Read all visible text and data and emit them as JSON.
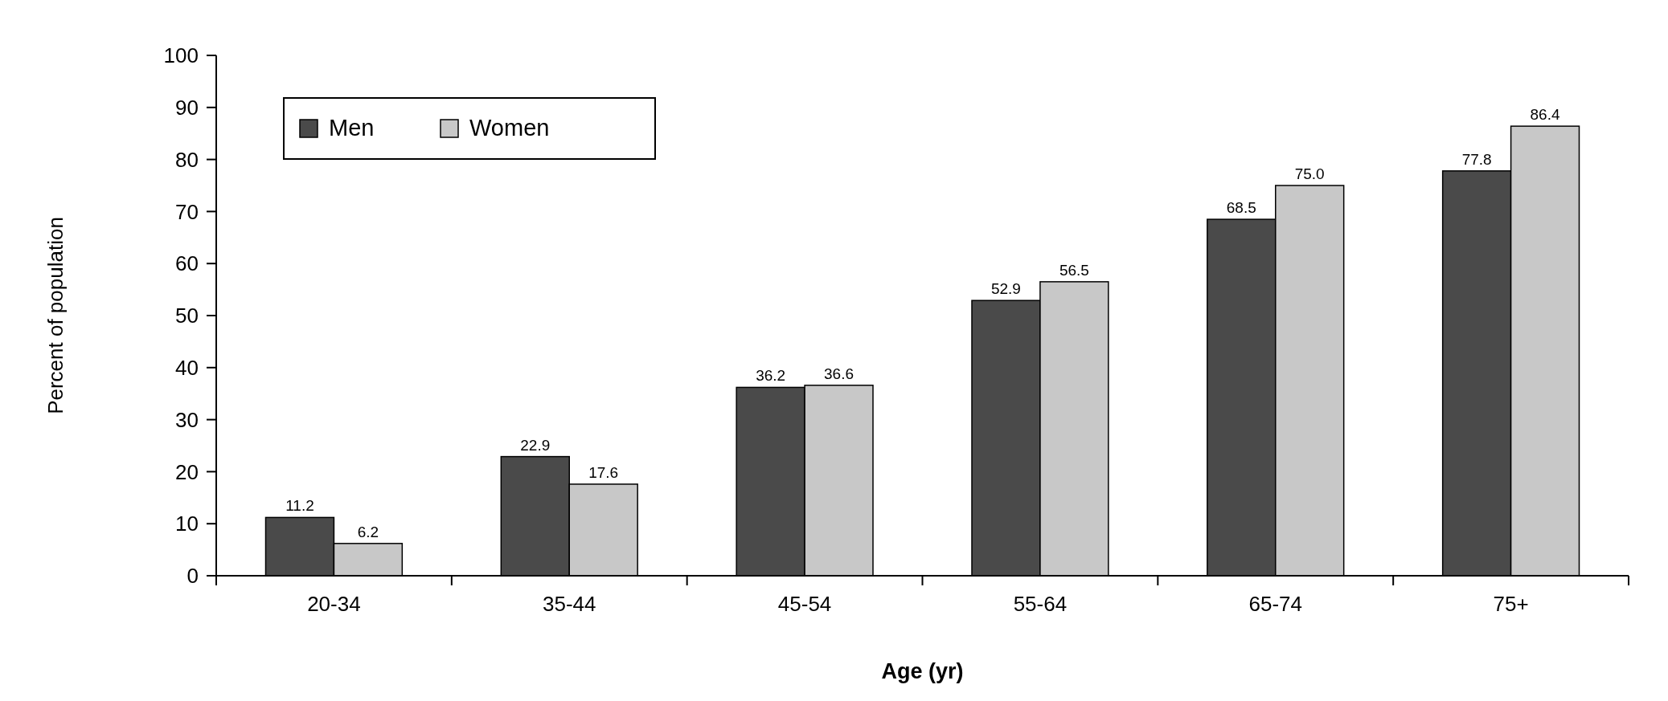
{
  "chart_data": {
    "type": "bar",
    "xlabel": "Age (yr)",
    "ylabel": "Percent of population",
    "categories": [
      "20-34",
      "35-44",
      "45-54",
      "55-64",
      "65-74",
      "75+"
    ],
    "series": [
      {
        "name": "Men",
        "color": "#4a4a4a",
        "values": [
          11.2,
          22.9,
          36.2,
          52.9,
          68.5,
          77.8
        ],
        "value_labels": [
          "11.2",
          "22.9",
          "36.2",
          "52.9",
          "68.5",
          "77.8"
        ]
      },
      {
        "name": "Women",
        "color": "#c8c8c8",
        "values": [
          6.2,
          17.6,
          36.6,
          56.5,
          75.0,
          86.4
        ],
        "value_labels": [
          "6.2",
          "17.6",
          "36.6",
          "56.5",
          "75.0",
          "86.4"
        ]
      }
    ],
    "ylim": [
      0,
      100
    ],
    "yticks": [
      0,
      10,
      20,
      30,
      40,
      50,
      60,
      70,
      80,
      90,
      100
    ],
    "grid": false,
    "legend": "top left"
  }
}
